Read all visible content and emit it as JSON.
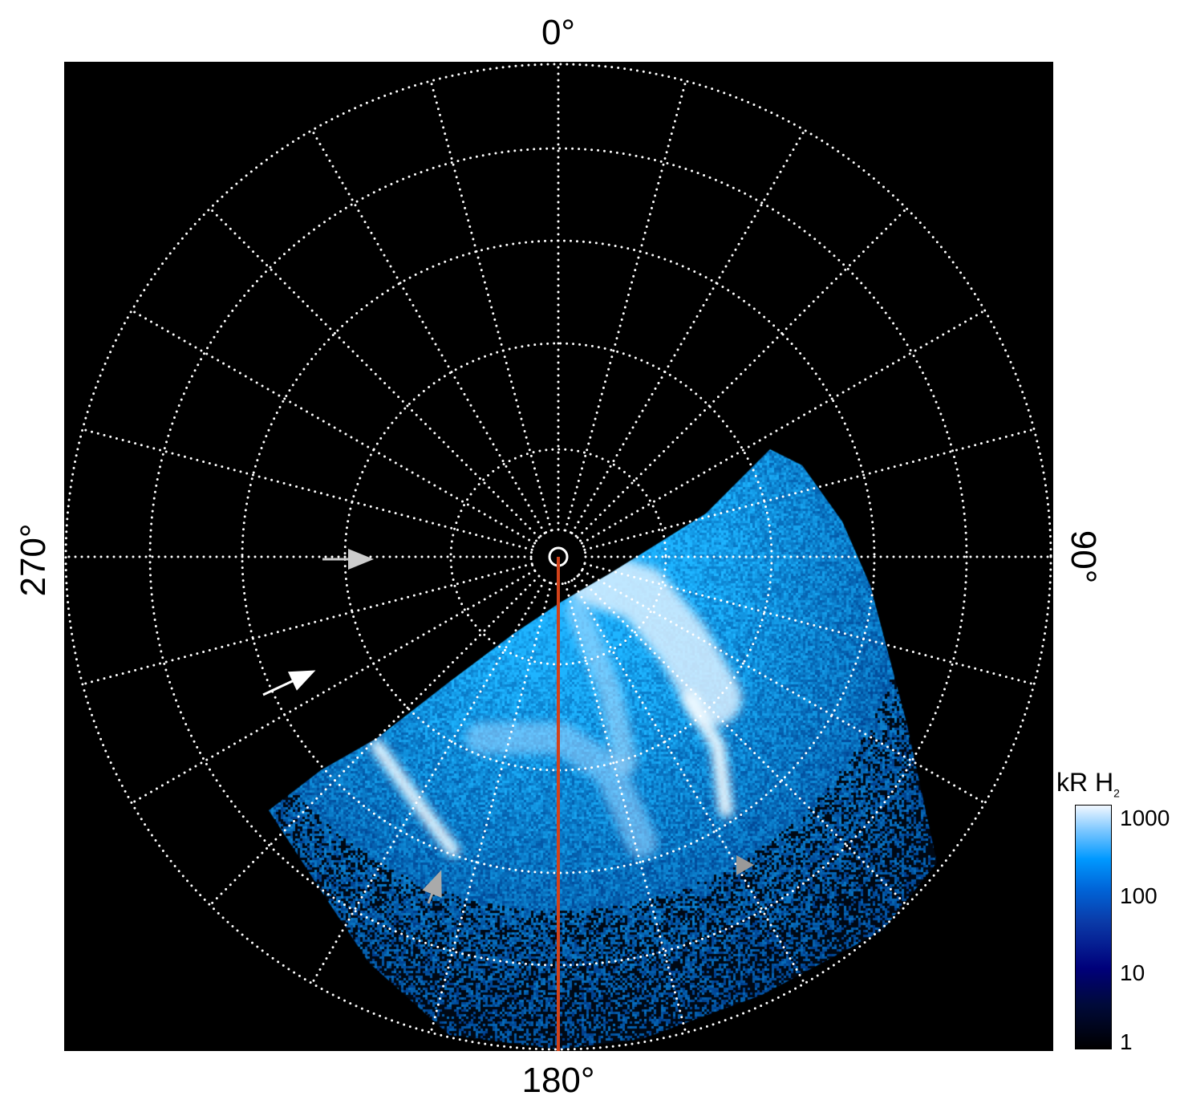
{
  "chart_data": {
    "type": "heatmap",
    "projection": "polar (north pole view)",
    "longitude_labels": {
      "top": "0°",
      "right": "90°",
      "bottom": "180°",
      "left": "270°"
    },
    "grid": {
      "on": true,
      "style": "dotted",
      "color": "#ffffff",
      "meridian_spacing_deg": 15,
      "latitude_rings": 6
    },
    "colorbar": {
      "label": "kR H",
      "label_subscript": "2",
      "scale": "log",
      "range": [
        1,
        1000
      ],
      "ticks": [
        "1000",
        "100",
        "10",
        "1"
      ],
      "colors": [
        "#000000",
        "#00007a",
        "#0066d9",
        "#0099ff",
        "#f2f8ff"
      ]
    },
    "annotations": [
      {
        "type": "arrow",
        "color": "#cccccc",
        "direction": "right"
      },
      {
        "type": "arrow",
        "color": "#ffffff",
        "direction": "up-right"
      },
      {
        "type": "arrow",
        "color": "#aaaaaa",
        "direction": "up"
      },
      {
        "type": "triangle-marker",
        "color": "#999999",
        "direction": "right"
      },
      {
        "type": "line",
        "color": "#d2421a"
      }
    ]
  }
}
